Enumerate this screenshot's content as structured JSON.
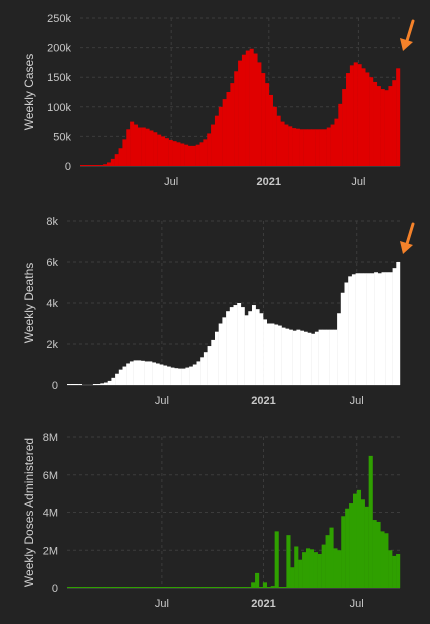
{
  "chart_data": [
    {
      "type": "bar",
      "ylabel": "Weekly Cases",
      "ylim": [
        0,
        250000
      ],
      "yticks": [
        0,
        50000,
        100000,
        150000,
        200000,
        250000
      ],
      "ytick_labels": [
        "0",
        "50k",
        "100k",
        "150k",
        "200k",
        "250k"
      ],
      "xtick_labels": [
        "Jul",
        "2021",
        "Jul"
      ],
      "grid": true,
      "bar_color": "#e00000",
      "values": [
        100,
        200,
        300,
        500,
        800,
        1500,
        3000,
        6000,
        12000,
        20000,
        30000,
        45000,
        62000,
        75000,
        70000,
        65000,
        65000,
        63000,
        60000,
        57000,
        53000,
        50000,
        47000,
        44000,
        42000,
        40000,
        38000,
        36000,
        34000,
        34000,
        36000,
        40000,
        45000,
        55000,
        70000,
        85000,
        100000,
        113000,
        125000,
        140000,
        160000,
        178000,
        188000,
        195000,
        198000,
        190000,
        175000,
        157000,
        140000,
        120000,
        100000,
        85000,
        75000,
        70000,
        67000,
        64000,
        63000,
        62000,
        62000,
        62000,
        62000,
        62000,
        62000,
        62000,
        65000,
        70000,
        80000,
        105000,
        130000,
        157000,
        170000,
        175000,
        172000,
        165000,
        158000,
        150000,
        142000,
        135000,
        130000,
        128000,
        135000,
        145000,
        165000
      ],
      "annotation": {
        "type": "arrow",
        "color": "#f5822a"
      }
    },
    {
      "type": "bar",
      "ylabel": "Weekly Deaths",
      "ylim": [
        0,
        8000
      ],
      "yticks": [
        0,
        2000,
        4000,
        6000,
        8000
      ],
      "ytick_labels": [
        "0",
        "2k",
        "4k",
        "6k",
        "8k"
      ],
      "xtick_labels": [
        "Jul",
        "2021",
        "Jul"
      ],
      "grid": true,
      "bar_color": "#ffffff",
      "values": [
        10,
        10,
        10,
        20,
        0,
        0,
        0,
        30,
        50,
        80,
        120,
        200,
        350,
        550,
        750,
        900,
        1050,
        1150,
        1200,
        1200,
        1180,
        1150,
        1150,
        1100,
        1050,
        1000,
        950,
        900,
        850,
        820,
        800,
        800,
        850,
        900,
        1000,
        1150,
        1350,
        1600,
        1900,
        2200,
        2600,
        3000,
        3300,
        3600,
        3800,
        3900,
        4000,
        3800,
        3400,
        3600,
        3900,
        3700,
        3500,
        3200,
        3000,
        3000,
        2950,
        2900,
        2800,
        2750,
        2700,
        2650,
        2700,
        2650,
        2600,
        2550,
        2500,
        2600,
        2700,
        2700,
        2700,
        2700,
        2700,
        3500,
        4500,
        5000,
        5300,
        5400,
        5450,
        5450,
        5450,
        5450,
        5450,
        5500,
        5450,
        5500,
        5500,
        5500,
        5700,
        6000
      ],
      "annotation": {
        "type": "arrow",
        "color": "#f5822a"
      }
    },
    {
      "type": "bar",
      "ylabel": "Weekly Doses Administered",
      "ylim": [
        0,
        8000000
      ],
      "yticks": [
        0,
        2000000,
        4000000,
        6000000,
        8000000
      ],
      "ytick_labels": [
        "0",
        "2M",
        "4M",
        "6M",
        "8M"
      ],
      "xtick_labels": [
        "Jul",
        "2021",
        "Jul"
      ],
      "grid": true,
      "bar_color": "#2fa000",
      "values": [
        20000,
        20000,
        20000,
        20000,
        20000,
        20000,
        20000,
        20000,
        20000,
        20000,
        20000,
        20000,
        20000,
        20000,
        20000,
        20000,
        20000,
        20000,
        20000,
        20000,
        20000,
        20000,
        20000,
        20000,
        20000,
        20000,
        20000,
        20000,
        20000,
        20000,
        20000,
        20000,
        20000,
        20000,
        20000,
        20000,
        20000,
        20000,
        20000,
        20000,
        20000,
        20000,
        20000,
        20000,
        20000,
        20000,
        30000,
        300000,
        800000,
        20000,
        300000,
        30000,
        100000,
        3000000,
        50000,
        30000,
        2800000,
        1100000,
        2200000,
        1500000,
        1900000,
        2100000,
        2050000,
        1900000,
        1800000,
        2300000,
        2800000,
        3200000,
        2100000,
        2000000,
        3800000,
        4200000,
        4500000,
        5000000,
        5200000,
        4700000,
        4300000,
        7000000,
        3600000,
        3500000,
        3000000,
        2900000,
        2000000,
        1700000,
        1800000
      ],
      "annotation": null
    }
  ]
}
